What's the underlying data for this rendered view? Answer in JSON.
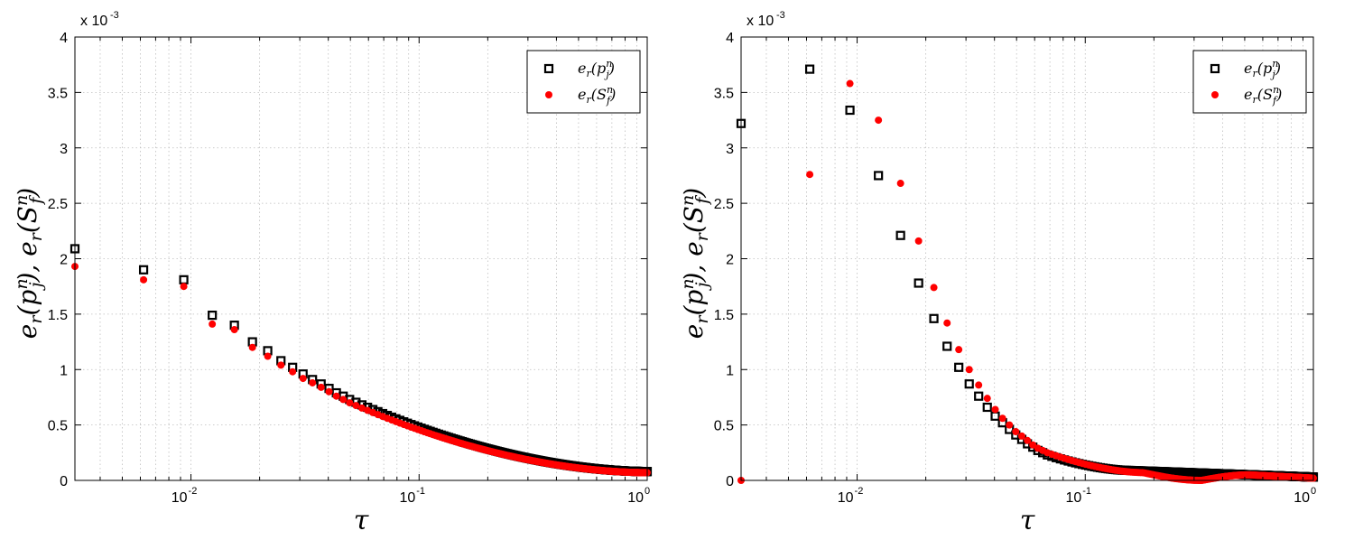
{
  "chart_data": [
    {
      "type": "scatter",
      "xscale": "log",
      "xlim": [
        0.0031,
        1
      ],
      "ylim": [
        0,
        4
      ],
      "y_multiplier": "x 10",
      "y_multiplier_exp": "-3",
      "grid": true,
      "xlabel": "τ",
      "ylabel": "e_r(p_j^n), e_r(S_f^n)",
      "legend_position": "top-right",
      "yticks": [
        "0",
        "0.5",
        "1",
        "1.5",
        "2",
        "2.5",
        "3",
        "3.5",
        "4"
      ],
      "xticks": [
        {
          "base": "10",
          "exp": "-2"
        },
        {
          "base": "10",
          "exp": "-1"
        },
        {
          "base": "10",
          "exp": "0"
        }
      ],
      "series": [
        {
          "name": "e_r(p_j^n)",
          "legend_main": "e",
          "legend_sub": "r",
          "legend_arg": "(p",
          "legend_arg_sub": "j",
          "legend_arg_sup": "n",
          "marker": "square",
          "color": "#000000",
          "start_points": [
            [
              0.0031,
              2.09
            ],
            [
              0.0062,
              1.9
            ],
            [
              0.0093,
              1.81
            ],
            [
              0.0124,
              1.49
            ],
            [
              0.0155,
              1.4
            ],
            [
              0.0186,
              1.25
            ],
            [
              0.0217,
              1.17
            ],
            [
              0.0248,
              1.08
            ],
            [
              0.0279,
              1.02
            ],
            [
              0.031,
              0.96
            ],
            [
              0.0341,
              0.91
            ],
            [
              0.0372,
              0.87
            ],
            [
              0.0403,
              0.83
            ],
            [
              0.0434,
              0.79
            ],
            [
              0.0465,
              0.76
            ]
          ],
          "curve": "decay",
          "curve_from": [
            0.0496,
            0.73
          ],
          "curve_to": [
            1,
            0.08
          ]
        },
        {
          "name": "e_r(S_f^n)",
          "legend_main": "e",
          "legend_sub": "r",
          "legend_arg": "(S",
          "legend_arg_sub": "f",
          "legend_arg_sup": "n",
          "marker": "circle",
          "color": "#ff0000",
          "start_points": [
            [
              0.0031,
              1.93
            ],
            [
              0.0062,
              1.81
            ],
            [
              0.0093,
              1.75
            ],
            [
              0.0124,
              1.41
            ],
            [
              0.0155,
              1.36
            ],
            [
              0.0186,
              1.2
            ],
            [
              0.0217,
              1.12
            ],
            [
              0.0248,
              1.04
            ],
            [
              0.0279,
              0.98
            ],
            [
              0.031,
              0.92
            ],
            [
              0.0341,
              0.88
            ],
            [
              0.0372,
              0.84
            ],
            [
              0.0403,
              0.8
            ],
            [
              0.0434,
              0.76
            ],
            [
              0.0465,
              0.73
            ]
          ],
          "curve": "decay",
          "curve_from": [
            0.0496,
            0.7
          ],
          "curve_to": [
            1,
            0.07
          ]
        }
      ]
    },
    {
      "type": "scatter",
      "xscale": "log",
      "xlim": [
        0.0031,
        1
      ],
      "ylim": [
        0,
        4
      ],
      "y_multiplier": "x 10",
      "y_multiplier_exp": "-3",
      "grid": true,
      "xlabel": "τ",
      "ylabel": "e_r(p_j^n), e_r(S_f^n)",
      "legend_position": "top-right",
      "yticks": [
        "0",
        "0.5",
        "1",
        "1.5",
        "2",
        "2.5",
        "3",
        "3.5",
        "4"
      ],
      "xticks": [
        {
          "base": "10",
          "exp": "-2"
        },
        {
          "base": "10",
          "exp": "-1"
        },
        {
          "base": "10",
          "exp": "0"
        }
      ],
      "series": [
        {
          "name": "e_r(p_j^n)",
          "legend_main": "e",
          "legend_sub": "r",
          "legend_arg": "(p",
          "legend_arg_sub": "j",
          "legend_arg_sup": "n",
          "marker": "square",
          "color": "#000000",
          "start_points": [
            [
              0.0031,
              3.22
            ],
            [
              0.0062,
              3.71
            ],
            [
              0.0093,
              3.34
            ],
            [
              0.0124,
              2.75
            ],
            [
              0.0155,
              2.21
            ],
            [
              0.0186,
              1.78
            ],
            [
              0.0217,
              1.46
            ],
            [
              0.0248,
              1.21
            ],
            [
              0.0279,
              1.02
            ],
            [
              0.031,
              0.87
            ],
            [
              0.0341,
              0.76
            ],
            [
              0.0372,
              0.66
            ],
            [
              0.0403,
              0.58
            ],
            [
              0.0434,
              0.52
            ],
            [
              0.0465,
              0.46
            ],
            [
              0.0496,
              0.41
            ],
            [
              0.0527,
              0.37
            ],
            [
              0.0558,
              0.33
            ],
            [
              0.0589,
              0.3
            ],
            [
              0.062,
              0.27
            ],
            [
              0.0651,
              0.25
            ]
          ],
          "curve": "flat",
          "curve_from": [
            0.0682,
            0.23
          ],
          "curve_to": [
            1,
            0.03
          ]
        },
        {
          "name": "e_r(S_f^n)",
          "legend_main": "e",
          "legend_sub": "r",
          "legend_arg": "(S",
          "legend_arg_sub": "f",
          "legend_arg_sup": "n",
          "marker": "circle",
          "color": "#ff0000",
          "start_points": [
            [
              0.0031,
              0.0
            ],
            [
              0.0062,
              2.76
            ],
            [
              0.0093,
              3.58
            ],
            [
              0.0124,
              3.25
            ],
            [
              0.0155,
              2.68
            ],
            [
              0.0186,
              2.16
            ],
            [
              0.0217,
              1.74
            ],
            [
              0.0248,
              1.42
            ],
            [
              0.0279,
              1.18
            ],
            [
              0.031,
              1.0
            ],
            [
              0.0341,
              0.86
            ],
            [
              0.0372,
              0.74
            ],
            [
              0.0403,
              0.64
            ],
            [
              0.0434,
              0.56
            ],
            [
              0.0465,
              0.5
            ],
            [
              0.0496,
              0.44
            ],
            [
              0.0527,
              0.4
            ],
            [
              0.0558,
              0.36
            ],
            [
              0.0589,
              0.32
            ],
            [
              0.062,
              0.29
            ],
            [
              0.0651,
              0.27
            ]
          ],
          "curve": "dip",
          "curve_from": [
            0.0682,
            0.25
          ],
          "curve_to": [
            1,
            0.02
          ]
        }
      ]
    }
  ]
}
